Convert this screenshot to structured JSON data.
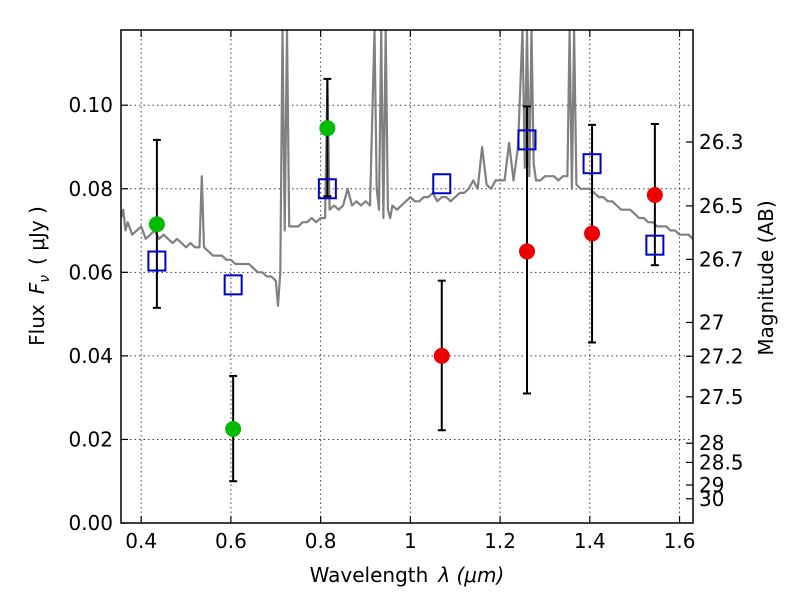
{
  "chart_data": {
    "type": "scatter",
    "xlabel_text": "Wavelength",
    "xlabel_math": "λ (μm)",
    "ylabel_text": "Flux",
    "ylabel_math": "F",
    "ylabel_sub": "ν",
    "ylabel_unit": "( μJy )",
    "y2label": "Magnitude (AB)",
    "xlim": [
      0.355,
      1.63
    ],
    "ylim": [
      0.0,
      0.118
    ],
    "grid": true,
    "xticks": [
      0.4,
      0.6,
      0.8,
      1.0,
      1.2,
      1.4,
      1.6
    ],
    "xtick_labels": [
      "0.4",
      "0.6",
      "0.8",
      "1",
      "1.2",
      "1.4",
      "1.6"
    ],
    "yticks": [
      0.0,
      0.02,
      0.04,
      0.06,
      0.08,
      0.1
    ],
    "ytick_labels": [
      "0.00",
      "0.02",
      "0.04",
      "0.06",
      "0.08",
      "0.10"
    ],
    "y2ticks": [
      {
        "flux": 0.0912,
        "label": "26.3"
      },
      {
        "flux": 0.0759,
        "label": "26.5"
      },
      {
        "flux": 0.0631,
        "label": "26.7"
      },
      {
        "flux": 0.048,
        "label": "27"
      },
      {
        "flux": 0.0399,
        "label": "27.2"
      },
      {
        "flux": 0.0302,
        "label": "27.5"
      },
      {
        "flux": 0.0191,
        "label": "28"
      },
      {
        "flux": 0.0145,
        "label": "28.5"
      },
      {
        "flux": 0.0091,
        "label": "29"
      },
      {
        "flux": 0.0058,
        "label": "30"
      }
    ],
    "series": [
      {
        "kind": "line",
        "color": "#808080",
        "x": [
          0.355,
          0.36,
          0.365,
          0.37,
          0.38,
          0.39,
          0.4,
          0.41,
          0.42,
          0.43,
          0.44,
          0.45,
          0.46,
          0.47,
          0.48,
          0.49,
          0.5,
          0.51,
          0.52,
          0.53,
          0.535,
          0.54,
          0.55,
          0.56,
          0.57,
          0.58,
          0.59,
          0.6,
          0.61,
          0.62,
          0.63,
          0.64,
          0.65,
          0.66,
          0.67,
          0.68,
          0.69,
          0.7,
          0.705,
          0.71,
          0.715,
          0.72,
          0.725,
          0.73,
          0.74,
          0.75,
          0.76,
          0.77,
          0.78,
          0.79,
          0.8,
          0.81,
          0.815,
          0.82,
          0.83,
          0.84,
          0.85,
          0.86,
          0.87,
          0.88,
          0.89,
          0.9,
          0.91,
          0.92,
          0.925,
          0.93,
          0.935,
          0.94,
          0.945,
          0.95,
          0.955,
          0.96,
          0.97,
          0.98,
          0.99,
          1.0,
          1.01,
          1.02,
          1.03,
          1.04,
          1.05,
          1.06,
          1.07,
          1.08,
          1.09,
          1.1,
          1.11,
          1.12,
          1.13,
          1.14,
          1.15,
          1.16,
          1.17,
          1.18,
          1.19,
          1.2,
          1.21,
          1.22,
          1.23,
          1.24,
          1.25,
          1.255,
          1.26,
          1.265,
          1.27,
          1.275,
          1.28,
          1.29,
          1.3,
          1.31,
          1.32,
          1.33,
          1.34,
          1.35,
          1.355,
          1.36,
          1.365,
          1.37,
          1.38,
          1.39,
          1.4,
          1.41,
          1.42,
          1.43,
          1.44,
          1.45,
          1.46,
          1.47,
          1.48,
          1.49,
          1.5,
          1.51,
          1.52,
          1.53,
          1.54,
          1.55,
          1.56,
          1.57,
          1.58,
          1.59,
          1.6,
          1.61,
          1.62,
          1.63
        ],
        "y": [
          0.073,
          0.075,
          0.07,
          0.072,
          0.069,
          0.07,
          0.071,
          0.068,
          0.069,
          0.07,
          0.068,
          0.069,
          0.068,
          0.067,
          0.068,
          0.067,
          0.066,
          0.067,
          0.066,
          0.066,
          0.083,
          0.066,
          0.065,
          0.064,
          0.064,
          0.064,
          0.063,
          0.063,
          0.062,
          0.062,
          0.062,
          0.062,
          0.061,
          0.06,
          0.06,
          0.059,
          0.059,
          0.058,
          0.052,
          0.06,
          0.118,
          0.07,
          0.118,
          0.071,
          0.071,
          0.071,
          0.072,
          0.072,
          0.073,
          0.072,
          0.073,
          0.073,
          0.106,
          0.075,
          0.076,
          0.075,
          0.076,
          0.08,
          0.076,
          0.077,
          0.076,
          0.077,
          0.076,
          0.118,
          0.08,
          0.075,
          0.118,
          0.073,
          0.118,
          0.075,
          0.073,
          0.076,
          0.075,
          0.076,
          0.077,
          0.078,
          0.077,
          0.077,
          0.078,
          0.078,
          0.079,
          0.077,
          0.078,
          0.078,
          0.077,
          0.078,
          0.079,
          0.079,
          0.08,
          0.082,
          0.08,
          0.09,
          0.081,
          0.08,
          0.082,
          0.082,
          0.082,
          0.091,
          0.082,
          0.09,
          0.118,
          0.085,
          0.118,
          0.083,
          0.118,
          0.086,
          0.082,
          0.082,
          0.083,
          0.083,
          0.083,
          0.082,
          0.083,
          0.083,
          0.118,
          0.08,
          0.118,
          0.081,
          0.08,
          0.08,
          0.08,
          0.079,
          0.078,
          0.078,
          0.077,
          0.077,
          0.076,
          0.075,
          0.075,
          0.075,
          0.074,
          0.073,
          0.073,
          0.072,
          0.072,
          0.071,
          0.071,
          0.071,
          0.07,
          0.07,
          0.069,
          0.069,
          0.069,
          0.068
        ]
      },
      {
        "kind": "scatter",
        "marker": "circle",
        "color": "#00bb00",
        "x": [
          0.435,
          0.605,
          0.815
        ],
        "y": [
          0.0715,
          0.0225,
          0.0945
        ],
        "yerr_lo": [
          0.0515,
          0.01,
          0.0782
        ],
        "yerr_hi": [
          0.0917,
          0.0352,
          0.1063
        ]
      },
      {
        "kind": "scatter",
        "marker": "circle",
        "color": "#ee0000",
        "x": [
          1.07,
          1.26,
          1.405,
          1.545
        ],
        "y": [
          0.04,
          0.065,
          0.0693,
          0.0785
        ],
        "yerr_lo": [
          0.0222,
          0.031,
          0.0432,
          0.0617
        ],
        "yerr_hi": [
          0.058,
          0.0997,
          0.0953,
          0.0955
        ]
      },
      {
        "kind": "scatter",
        "marker": "open-square",
        "color": "#0000cc",
        "x": [
          0.435,
          0.605,
          0.815,
          1.07,
          1.26,
          1.405,
          1.545
        ],
        "y": [
          0.0627,
          0.057,
          0.08,
          0.0812,
          0.0917,
          0.086,
          0.0665
        ]
      }
    ]
  }
}
